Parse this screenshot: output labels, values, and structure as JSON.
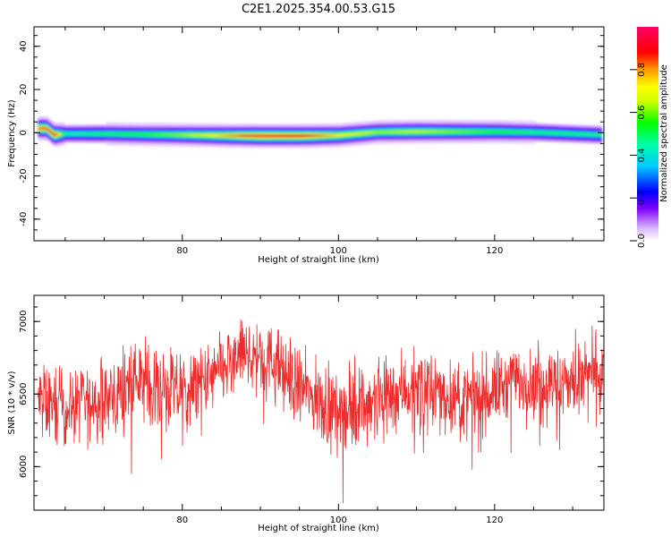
{
  "chart_data": [
    {
      "type": "heatmap",
      "title": "C2E1.2025.354.00.53.G15",
      "xlabel": "Height of straight line (km)",
      "ylabel": "Frequency (Hz)",
      "xlim": [
        61,
        134
      ],
      "ylim": [
        -50,
        49
      ],
      "xticks": [
        "80",
        "100",
        "120"
      ],
      "yticks": [
        "40",
        "20",
        "0",
        "-20",
        "-40"
      ],
      "colorbar": {
        "label": "Normalized spectral amplitude",
        "range": [
          0,
          1
        ],
        "ticks": [
          "0.0",
          "0.2",
          "0.4",
          "0.6",
          "0.8"
        ]
      },
      "signal_band": {
        "x": [
          61.5,
          62.5,
          63.5,
          65,
          70,
          75,
          80,
          85,
          90,
          95,
          100,
          105,
          110,
          115,
          120,
          125,
          130,
          133.5
        ],
        "center_freq_hz": [
          2,
          2,
          -1,
          -0.5,
          -0.5,
          -0.8,
          -1,
          -1.3,
          -1.5,
          -1.5,
          -1.2,
          0.3,
          0.5,
          0.5,
          0.5,
          0.2,
          -0.5,
          -1
        ],
        "peak_amplitude": [
          0.8,
          0.85,
          0.9,
          0.45,
          0.5,
          0.55,
          0.62,
          0.75,
          0.9,
          0.88,
          0.72,
          0.62,
          0.65,
          0.6,
          0.55,
          0.5,
          0.48,
          0.48
        ]
      },
      "grid": false
    },
    {
      "type": "line",
      "title": "",
      "xlabel": "Height of straight line (km)",
      "ylabel": "SNR (10 * v/v)",
      "xlim": [
        61,
        134
      ],
      "ylim": [
        5700,
        7180
      ],
      "xticks": [
        "80",
        "100",
        "120"
      ],
      "yticks": [
        "6000",
        "6500",
        "7000"
      ],
      "series": [
        {
          "color": "#ee2b2b",
          "x": [
            62,
            65,
            68,
            71,
            74,
            77,
            80,
            83,
            86,
            88,
            90,
            92,
            95,
            98,
            101,
            104,
            107,
            110,
            113,
            116,
            119,
            122,
            125,
            128,
            131,
            134
          ],
          "y": [
            6450,
            6400,
            6430,
            6480,
            6600,
            6550,
            6500,
            6580,
            6700,
            6780,
            6750,
            6700,
            6550,
            6420,
            6400,
            6450,
            6520,
            6550,
            6500,
            6450,
            6500,
            6580,
            6600,
            6560,
            6600,
            6650
          ]
        }
      ],
      "grid": false
    }
  ]
}
